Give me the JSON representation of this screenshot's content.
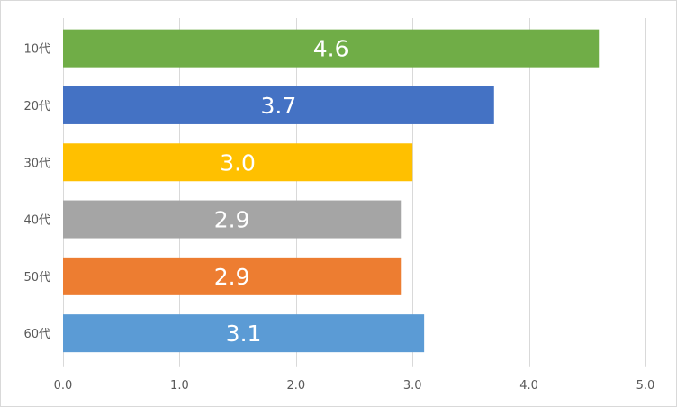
{
  "chart_data": {
    "type": "bar",
    "orientation": "horizontal",
    "title": "",
    "xlabel": "",
    "ylabel": "",
    "categories": [
      "10代",
      "20代",
      "30代",
      "40代",
      "50代",
      "60代"
    ],
    "values": [
      4.6,
      3.7,
      3.0,
      2.9,
      2.9,
      3.1
    ],
    "value_labels": [
      "4.6",
      "3.7",
      "3.0",
      "2.9",
      "2.9",
      "3.1"
    ],
    "colors": [
      "#70ad47",
      "#4472c4",
      "#ffc000",
      "#a5a5a5",
      "#ed7d31",
      "#5b9bd5"
    ],
    "xlim": [
      0,
      5
    ],
    "x_ticks": [
      0,
      1,
      2,
      3,
      4,
      5
    ],
    "x_tick_labels": [
      "0.0",
      "1.0",
      "2.0",
      "3.0",
      "4.0",
      "5.0"
    ],
    "grid": true,
    "legend": "none"
  }
}
